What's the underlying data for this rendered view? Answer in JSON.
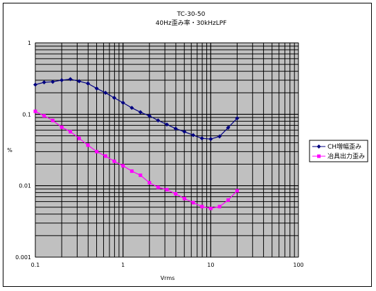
{
  "chart_data": {
    "type": "line",
    "title": "TC-30-50",
    "subtitle": "40Hz歪み率・30kHzLPF",
    "xlabel": "Vrms",
    "ylabel": "%",
    "x_scale": "log",
    "y_scale": "log",
    "xlim": [
      0.1,
      100
    ],
    "ylim": [
      0.001,
      1
    ],
    "x_ticks": [
      "0.1",
      "1",
      "10",
      "100"
    ],
    "y_ticks": [
      "1",
      "0.1",
      "0.01",
      "0.001"
    ],
    "grid": true,
    "legend_position": "right",
    "series": [
      {
        "name": "CH増幅歪み",
        "color": "#000080",
        "marker": "diamond",
        "x": [
          0.1,
          0.126,
          0.158,
          0.2,
          0.251,
          0.316,
          0.398,
          0.501,
          0.631,
          0.794,
          1,
          1.26,
          1.58,
          2,
          2.51,
          3.16,
          3.98,
          5.01,
          6.31,
          7.94,
          10,
          12.6,
          15.8,
          20
        ],
        "y": [
          0.26,
          0.28,
          0.285,
          0.3,
          0.31,
          0.29,
          0.27,
          0.23,
          0.2,
          0.17,
          0.145,
          0.123,
          0.107,
          0.095,
          0.082,
          0.072,
          0.063,
          0.057,
          0.051,
          0.046,
          0.045,
          0.049,
          0.065,
          0.088
        ]
      },
      {
        "name": "冶具出力歪み",
        "color": "#ff00ff",
        "marker": "square",
        "x": [
          0.1,
          0.126,
          0.158,
          0.2,
          0.251,
          0.316,
          0.398,
          0.501,
          0.631,
          0.794,
          1,
          1.26,
          1.58,
          2,
          2.51,
          3.16,
          3.98,
          5.01,
          6.31,
          7.94,
          10,
          12.6,
          15.8,
          20
        ],
        "y": [
          0.11,
          0.095,
          0.082,
          0.066,
          0.057,
          0.046,
          0.037,
          0.03,
          0.026,
          0.022,
          0.019,
          0.016,
          0.014,
          0.011,
          0.0095,
          0.0088,
          0.0077,
          0.0066,
          0.0058,
          0.0051,
          0.0048,
          0.0051,
          0.0063,
          0.0085
        ]
      }
    ]
  }
}
